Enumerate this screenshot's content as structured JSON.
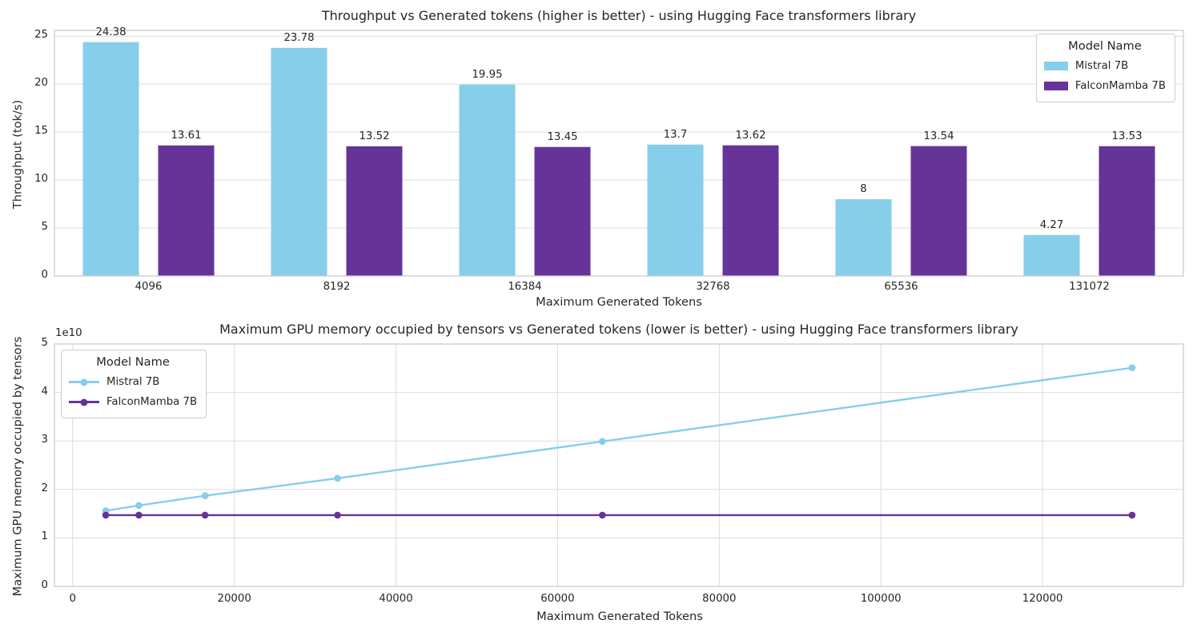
{
  "figure": {
    "background": "#ffffff",
    "grid_color": "#dcdcdc",
    "spine_color": "#cccccc",
    "text_color": "#262626"
  },
  "chart_data": [
    {
      "type": "bar",
      "title": "Throughput vs Generated tokens (higher is better) - using Hugging Face transformers library",
      "xlabel": "Maximum Generated Tokens",
      "ylabel": "Throughput (tok/s)",
      "categories": [
        "4096",
        "8192",
        "16384",
        "32768",
        "65536",
        "131072"
      ],
      "yticks": [
        0,
        5,
        10,
        15,
        20,
        25
      ],
      "ylim": [
        0,
        25.6
      ],
      "grid": "horizontal",
      "legend": {
        "title": "Model Name",
        "position": "upper right"
      },
      "series": [
        {
          "name": "Mistral 7B",
          "color": "#87CEEB",
          "values": [
            24.38,
            23.78,
            19.95,
            13.7,
            8,
            4.27
          ],
          "labels": [
            "24.38",
            "23.78",
            "19.95",
            "13.7",
            "8",
            "4.27"
          ]
        },
        {
          "name": "FalconMamba 7B",
          "color": "#663399",
          "values": [
            13.61,
            13.52,
            13.45,
            13.62,
            13.54,
            13.53
          ],
          "labels": [
            "13.61",
            "13.52",
            "13.45",
            "13.62",
            "13.54",
            "13.53"
          ]
        }
      ]
    },
    {
      "type": "line",
      "title": "Maximum GPU memory occupied by tensors vs Generated tokens (lower is better) - using Hugging Face transformers library",
      "xlabel": "Maximum Generated Tokens",
      "ylabel": "Maximum GPU memory occupied by tensors",
      "scale_label": "1e10",
      "x": [
        4096,
        8192,
        16384,
        32768,
        65536,
        131072
      ],
      "xticks": [
        0,
        20000,
        40000,
        60000,
        80000,
        100000,
        120000
      ],
      "xtick_labels": [
        "0",
        "20000",
        "40000",
        "60000",
        "80000",
        "100000",
        "120000"
      ],
      "xlim": [
        -2253,
        137421
      ],
      "yticks": [
        0,
        10000000000.0,
        20000000000.0,
        30000000000.0,
        40000000000.0,
        50000000000.0
      ],
      "ytick_labels": [
        "0",
        "1",
        "2",
        "3",
        "4",
        "5"
      ],
      "ylim": [
        0,
        50000000000.0
      ],
      "grid": "both",
      "legend": {
        "title": "Model Name",
        "position": "upper left"
      },
      "series": [
        {
          "name": "Mistral 7B",
          "color": "#87CEEB",
          "values": [
            15600000000.0,
            16700000000.0,
            18700000000.0,
            22300000000.0,
            29900000000.0,
            45100000000.0
          ]
        },
        {
          "name": "FalconMamba 7B",
          "color": "#663399",
          "values": [
            14700000000.0,
            14700000000.0,
            14700000000.0,
            14700000000.0,
            14700000000.0,
            14700000000.0
          ]
        }
      ]
    }
  ]
}
